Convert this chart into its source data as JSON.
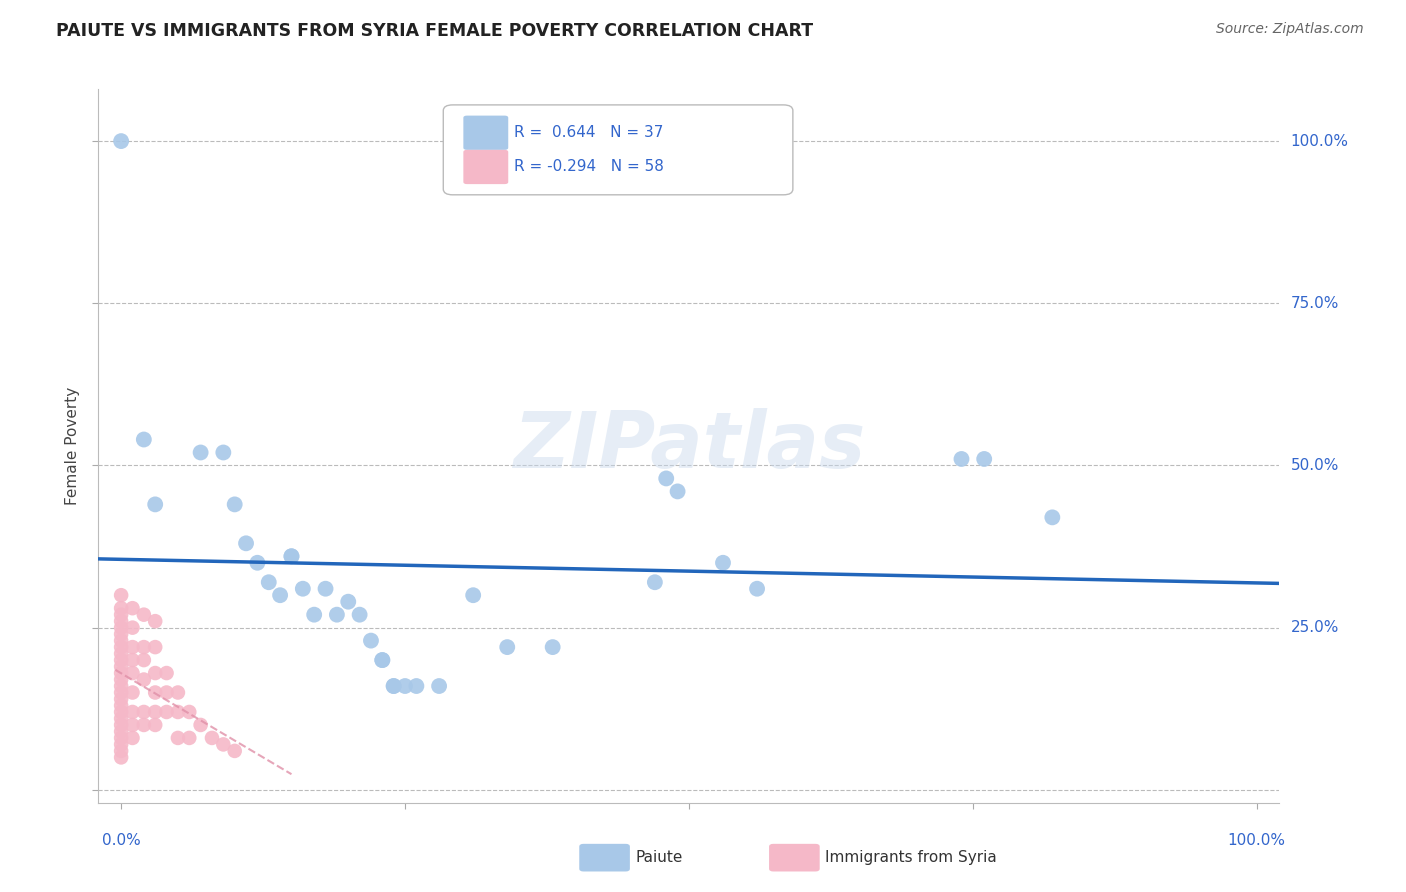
{
  "title": "PAIUTE VS IMMIGRANTS FROM SYRIA FEMALE POVERTY CORRELATION CHART",
  "source": "Source: ZipAtlas.com",
  "ylabel": "Female Poverty",
  "watermark": "ZIPatlas",
  "paiute_R": 0.644,
  "paiute_N": 37,
  "syria_R": -0.294,
  "syria_N": 58,
  "legend_paiute": "Paiute",
  "legend_syria": "Immigrants from Syria",
  "paiute_color": "#a8c8e8",
  "syria_color": "#f5b8c8",
  "line_color": "#2266bb",
  "syria_line_color": "#e090a8",
  "background_color": "#ffffff",
  "grid_color": "#bbbbbb",
  "title_color": "#222222",
  "tick_label_color": "#3366cc",
  "axis_label_color": "#444444",
  "paiute_points": [
    [
      0.0,
      1.0
    ],
    [
      0.02,
      0.54
    ],
    [
      0.03,
      0.44
    ],
    [
      0.07,
      0.52
    ],
    [
      0.09,
      0.52
    ],
    [
      0.1,
      0.44
    ],
    [
      0.11,
      0.38
    ],
    [
      0.12,
      0.35
    ],
    [
      0.13,
      0.32
    ],
    [
      0.14,
      0.3
    ],
    [
      0.15,
      0.36
    ],
    [
      0.15,
      0.36
    ],
    [
      0.16,
      0.31
    ],
    [
      0.17,
      0.27
    ],
    [
      0.18,
      0.31
    ],
    [
      0.19,
      0.27
    ],
    [
      0.2,
      0.29
    ],
    [
      0.21,
      0.27
    ],
    [
      0.22,
      0.23
    ],
    [
      0.23,
      0.2
    ],
    [
      0.23,
      0.2
    ],
    [
      0.24,
      0.16
    ],
    [
      0.24,
      0.16
    ],
    [
      0.25,
      0.16
    ],
    [
      0.26,
      0.16
    ],
    [
      0.28,
      0.16
    ],
    [
      0.31,
      0.3
    ],
    [
      0.34,
      0.22
    ],
    [
      0.38,
      0.22
    ],
    [
      0.47,
      0.32
    ],
    [
      0.48,
      0.48
    ],
    [
      0.49,
      0.46
    ],
    [
      0.53,
      0.35
    ],
    [
      0.56,
      0.31
    ],
    [
      0.74,
      0.51
    ],
    [
      0.76,
      0.51
    ],
    [
      0.82,
      0.42
    ]
  ],
  "syria_points": [
    [
      0.0,
      0.3
    ],
    [
      0.0,
      0.28
    ],
    [
      0.0,
      0.27
    ],
    [
      0.0,
      0.26
    ],
    [
      0.0,
      0.25
    ],
    [
      0.0,
      0.24
    ],
    [
      0.0,
      0.23
    ],
    [
      0.0,
      0.22
    ],
    [
      0.0,
      0.21
    ],
    [
      0.0,
      0.2
    ],
    [
      0.0,
      0.19
    ],
    [
      0.0,
      0.18
    ],
    [
      0.0,
      0.17
    ],
    [
      0.0,
      0.16
    ],
    [
      0.0,
      0.15
    ],
    [
      0.0,
      0.14
    ],
    [
      0.0,
      0.13
    ],
    [
      0.0,
      0.12
    ],
    [
      0.0,
      0.11
    ],
    [
      0.0,
      0.1
    ],
    [
      0.0,
      0.09
    ],
    [
      0.0,
      0.08
    ],
    [
      0.0,
      0.07
    ],
    [
      0.0,
      0.06
    ],
    [
      0.0,
      0.05
    ],
    [
      0.01,
      0.28
    ],
    [
      0.01,
      0.25
    ],
    [
      0.01,
      0.22
    ],
    [
      0.01,
      0.2
    ],
    [
      0.01,
      0.18
    ],
    [
      0.01,
      0.15
    ],
    [
      0.01,
      0.12
    ],
    [
      0.01,
      0.1
    ],
    [
      0.01,
      0.08
    ],
    [
      0.02,
      0.27
    ],
    [
      0.02,
      0.22
    ],
    [
      0.02,
      0.2
    ],
    [
      0.02,
      0.17
    ],
    [
      0.02,
      0.12
    ],
    [
      0.02,
      0.1
    ],
    [
      0.03,
      0.26
    ],
    [
      0.03,
      0.22
    ],
    [
      0.03,
      0.18
    ],
    [
      0.03,
      0.15
    ],
    [
      0.03,
      0.12
    ],
    [
      0.03,
      0.1
    ],
    [
      0.04,
      0.18
    ],
    [
      0.04,
      0.15
    ],
    [
      0.04,
      0.12
    ],
    [
      0.05,
      0.15
    ],
    [
      0.05,
      0.12
    ],
    [
      0.05,
      0.08
    ],
    [
      0.06,
      0.12
    ],
    [
      0.06,
      0.08
    ],
    [
      0.07,
      0.1
    ],
    [
      0.08,
      0.08
    ],
    [
      0.09,
      0.07
    ],
    [
      0.1,
      0.06
    ]
  ],
  "xlim": [
    -0.02,
    1.02
  ],
  "ylim": [
    -0.02,
    1.08
  ],
  "yticks": [
    0.0,
    0.25,
    0.5,
    0.75,
    1.0
  ],
  "ytick_labels": [
    "",
    "25.0%",
    "50.0%",
    "75.0%",
    "100.0%"
  ],
  "xtick_labels": [
    "0.0%",
    "100.0%"
  ]
}
